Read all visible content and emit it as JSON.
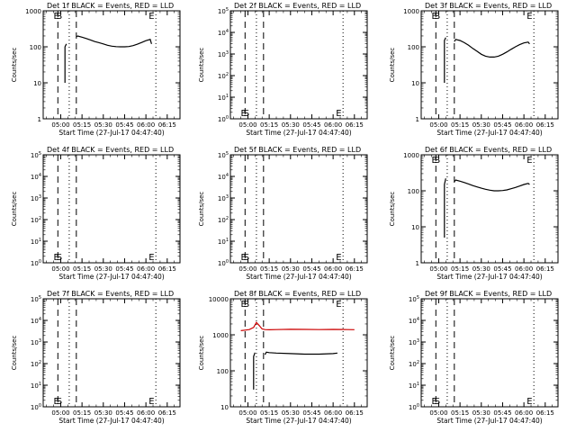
{
  "figure": {
    "xlabel": "Start Time (27-Jul-17 04:47:40)",
    "ylabel": "Counts/sec",
    "x_tick_labels": [
      "05:00",
      "05:15",
      "05:30",
      "05:45",
      "06:00",
      "06:15"
    ],
    "marker_labels": {
      "e_start": "ES",
      "s": "S",
      "e": "E"
    },
    "colors": {
      "events": "#000000",
      "lld": "#cc0000",
      "background": "#ffffff"
    }
  },
  "chart_data": [
    {
      "type": "line",
      "title": "Det 1f BLACK = Events, RED = LLD",
      "ylim_log10": [
        0,
        3
      ],
      "y_tick_labels": [
        "1",
        "10",
        "100",
        "1000"
      ],
      "series": [
        {
          "name": "Events",
          "color": "#000000",
          "x": [
            "05:11",
            "05:12",
            "05:15",
            "05:18",
            "05:21",
            "05:24",
            "05:27",
            "05:30",
            "05:33",
            "05:36",
            "05:39",
            "05:42",
            "05:45",
            "05:48",
            "05:51",
            "05:54",
            "05:57",
            "06:00",
            "06:03",
            "06:04"
          ],
          "y": [
            190,
            200,
            185,
            170,
            155,
            140,
            130,
            120,
            110,
            104,
            101,
            100,
            100,
            102,
            108,
            118,
            132,
            148,
            160,
            120
          ]
        },
        {
          "name": "Events",
          "color": "#000000",
          "x": [
            "05:03",
            "05:03",
            "05:04"
          ],
          "y": [
            10,
            100,
            120
          ]
        }
      ],
      "markers": {
        "dotted": [
          "05:06",
          "06:07"
        ],
        "dashed": [
          "04:58",
          "05:11"
        ],
        "labels": [
          {
            "text": "E",
            "x": "04:57",
            "pos": "top"
          },
          {
            "text": "S",
            "x": "04:59",
            "pos": "top"
          },
          {
            "text": "E",
            "x": "06:04",
            "pos": "top"
          }
        ]
      }
    },
    {
      "type": "line",
      "title": "Det 2f BLACK = Events, RED = LLD",
      "ylim_log10": [
        0,
        5
      ],
      "y_tick_labels": [
        "10^0",
        "10^1",
        "10^2",
        "10^3",
        "10^4",
        "10^5"
      ],
      "series": [],
      "markers": {
        "dotted": [
          "05:06",
          "06:07"
        ],
        "dashed": [
          "04:58",
          "05:11"
        ],
        "labels": [
          {
            "text": "E",
            "x": "04:57",
            "pos": "bottom"
          },
          {
            "text": "S",
            "x": "04:59",
            "pos": "bottom"
          },
          {
            "text": "E",
            "x": "06:04",
            "pos": "bottom"
          }
        ]
      }
    },
    {
      "type": "line",
      "title": "Det 3f BLACK = Events, RED = LLD",
      "ylim_log10": [
        0,
        3
      ],
      "y_tick_labels": [
        "1",
        "10",
        "100",
        "1000"
      ],
      "series": [
        {
          "name": "Events",
          "color": "#000000",
          "x": [
            "05:11",
            "05:12",
            "05:15",
            "05:18",
            "05:21",
            "05:24",
            "05:27",
            "05:30",
            "05:33",
            "05:36",
            "05:39",
            "05:42",
            "05:45",
            "05:48",
            "05:51",
            "05:54",
            "05:57",
            "06:00",
            "06:03",
            "06:04"
          ],
          "y": [
            140,
            160,
            150,
            130,
            110,
            90,
            75,
            62,
            55,
            52,
            52,
            55,
            62,
            72,
            85,
            100,
            115,
            128,
            135,
            120
          ]
        },
        {
          "name": "Events",
          "color": "#000000",
          "x": [
            "05:04",
            "05:04",
            "05:05"
          ],
          "y": [
            10,
            150,
            180
          ]
        }
      ],
      "markers": {
        "dotted": [
          "05:06",
          "06:07"
        ],
        "dashed": [
          "04:58",
          "05:11"
        ],
        "labels": [
          {
            "text": "E",
            "x": "04:57",
            "pos": "top"
          },
          {
            "text": "S",
            "x": "04:59",
            "pos": "top"
          },
          {
            "text": "E",
            "x": "06:04",
            "pos": "top"
          }
        ]
      }
    },
    {
      "type": "line",
      "title": "Det 4f BLACK = Events, RED = LLD",
      "ylim_log10": [
        0,
        5
      ],
      "y_tick_labels": [
        "10^0",
        "10^1",
        "10^2",
        "10^3",
        "10^4",
        "10^5"
      ],
      "series": [],
      "markers": {
        "dotted": [
          "05:06",
          "06:07"
        ],
        "dashed": [
          "04:58",
          "05:11"
        ],
        "labels": [
          {
            "text": "E",
            "x": "04:57",
            "pos": "bottom"
          },
          {
            "text": "S",
            "x": "04:59",
            "pos": "bottom"
          },
          {
            "text": "E",
            "x": "06:04",
            "pos": "bottom"
          }
        ]
      }
    },
    {
      "type": "line",
      "title": "Det 5f BLACK = Events, RED = LLD",
      "ylim_log10": [
        0,
        5
      ],
      "y_tick_labels": [
        "10^0",
        "10^1",
        "10^2",
        "10^3",
        "10^4",
        "10^5"
      ],
      "series": [],
      "markers": {
        "dotted": [
          "05:06",
          "06:07"
        ],
        "dashed": [
          "04:58",
          "05:11"
        ],
        "labels": [
          {
            "text": "E",
            "x": "04:57",
            "pos": "bottom"
          },
          {
            "text": "S",
            "x": "04:59",
            "pos": "bottom"
          },
          {
            "text": "E",
            "x": "06:04",
            "pos": "bottom"
          }
        ]
      }
    },
    {
      "type": "line",
      "title": "Det 6f BLACK = Events, RED = LLD",
      "ylim_log10": [
        0,
        3
      ],
      "y_tick_labels": [
        "1",
        "10",
        "100",
        "1000"
      ],
      "series": [
        {
          "name": "Events",
          "color": "#000000",
          "x": [
            "05:11",
            "05:12",
            "05:15",
            "05:18",
            "05:21",
            "05:24",
            "05:27",
            "05:30",
            "05:33",
            "05:36",
            "05:39",
            "05:42",
            "05:45",
            "05:48",
            "05:51",
            "05:54",
            "05:57",
            "06:00",
            "06:03",
            "06:04"
          ],
          "y": [
            180,
            200,
            185,
            170,
            155,
            140,
            128,
            118,
            110,
            104,
            100,
            100,
            102,
            106,
            114,
            124,
            136,
            150,
            160,
            150
          ]
        },
        {
          "name": "Events",
          "color": "#000000",
          "x": [
            "05:04",
            "05:04",
            "05:05"
          ],
          "y": [
            5,
            150,
            220
          ]
        }
      ],
      "markers": {
        "dotted": [
          "05:06",
          "06:07"
        ],
        "dashed": [
          "04:58",
          "05:11"
        ],
        "labels": [
          {
            "text": "E",
            "x": "04:57",
            "pos": "top"
          },
          {
            "text": "S",
            "x": "04:59",
            "pos": "top"
          },
          {
            "text": "E",
            "x": "06:04",
            "pos": "top"
          }
        ]
      }
    },
    {
      "type": "line",
      "title": "Det 7f BLACK = Events, RED = LLD",
      "ylim_log10": [
        0,
        5
      ],
      "y_tick_labels": [
        "10^0",
        "10^1",
        "10^2",
        "10^3",
        "10^4",
        "10^5"
      ],
      "series": [],
      "markers": {
        "dotted": [
          "05:06",
          "06:07"
        ],
        "dashed": [
          "04:58",
          "05:11"
        ],
        "labels": [
          {
            "text": "E",
            "x": "04:57",
            "pos": "bottom"
          },
          {
            "text": "S",
            "x": "04:59",
            "pos": "bottom"
          },
          {
            "text": "E",
            "x": "06:04",
            "pos": "bottom"
          }
        ]
      }
    },
    {
      "type": "line",
      "title": "Det 8f BLACK = Events, RED = LLD",
      "ylim_log10": [
        1,
        4
      ],
      "y_tick_labels": [
        "10",
        "100",
        "1000",
        "10000"
      ],
      "series": [
        {
          "name": "LLD",
          "color": "#cc0000",
          "x": [
            "04:55",
            "04:58",
            "05:01",
            "05:04",
            "05:06",
            "05:08",
            "05:10",
            "05:12",
            "05:15",
            "05:20",
            "05:30",
            "05:40",
            "05:50",
            "06:00",
            "06:10",
            "06:15"
          ],
          "y": [
            1300,
            1350,
            1400,
            1600,
            2200,
            1800,
            1450,
            1400,
            1380,
            1400,
            1420,
            1410,
            1400,
            1410,
            1400,
            1390
          ]
        },
        {
          "name": "Events",
          "color": "#000000",
          "x": [
            "05:12",
            "05:13",
            "05:15",
            "05:20",
            "05:30",
            "05:40",
            "05:50",
            "06:00",
            "06:03"
          ],
          "y": [
            280,
            330,
            320,
            310,
            300,
            290,
            290,
            300,
            310
          ]
        },
        {
          "name": "Events",
          "color": "#000000",
          "x": [
            "05:04",
            "05:04",
            "05:05"
          ],
          "y": [
            30,
            250,
            320
          ]
        }
      ],
      "markers": {
        "dotted": [
          "05:06",
          "06:07"
        ],
        "dashed": [
          "04:58",
          "05:11"
        ],
        "labels": [
          {
            "text": "E",
            "x": "04:57",
            "pos": "top"
          },
          {
            "text": "S",
            "x": "04:59",
            "pos": "top"
          },
          {
            "text": "E",
            "x": "06:04",
            "pos": "top"
          }
        ]
      }
    },
    {
      "type": "line",
      "title": "Det 9f BLACK = Events, RED = LLD",
      "ylim_log10": [
        0,
        5
      ],
      "y_tick_labels": [
        "10^0",
        "10^1",
        "10^2",
        "10^3",
        "10^4",
        "10^5"
      ],
      "series": [],
      "markers": {
        "dotted": [
          "05:06",
          "06:07"
        ],
        "dashed": [
          "04:58",
          "05:11"
        ],
        "labels": [
          {
            "text": "E",
            "x": "04:57",
            "pos": "bottom"
          },
          {
            "text": "S",
            "x": "04:59",
            "pos": "bottom"
          },
          {
            "text": "E",
            "x": "06:04",
            "pos": "bottom"
          }
        ]
      }
    }
  ]
}
